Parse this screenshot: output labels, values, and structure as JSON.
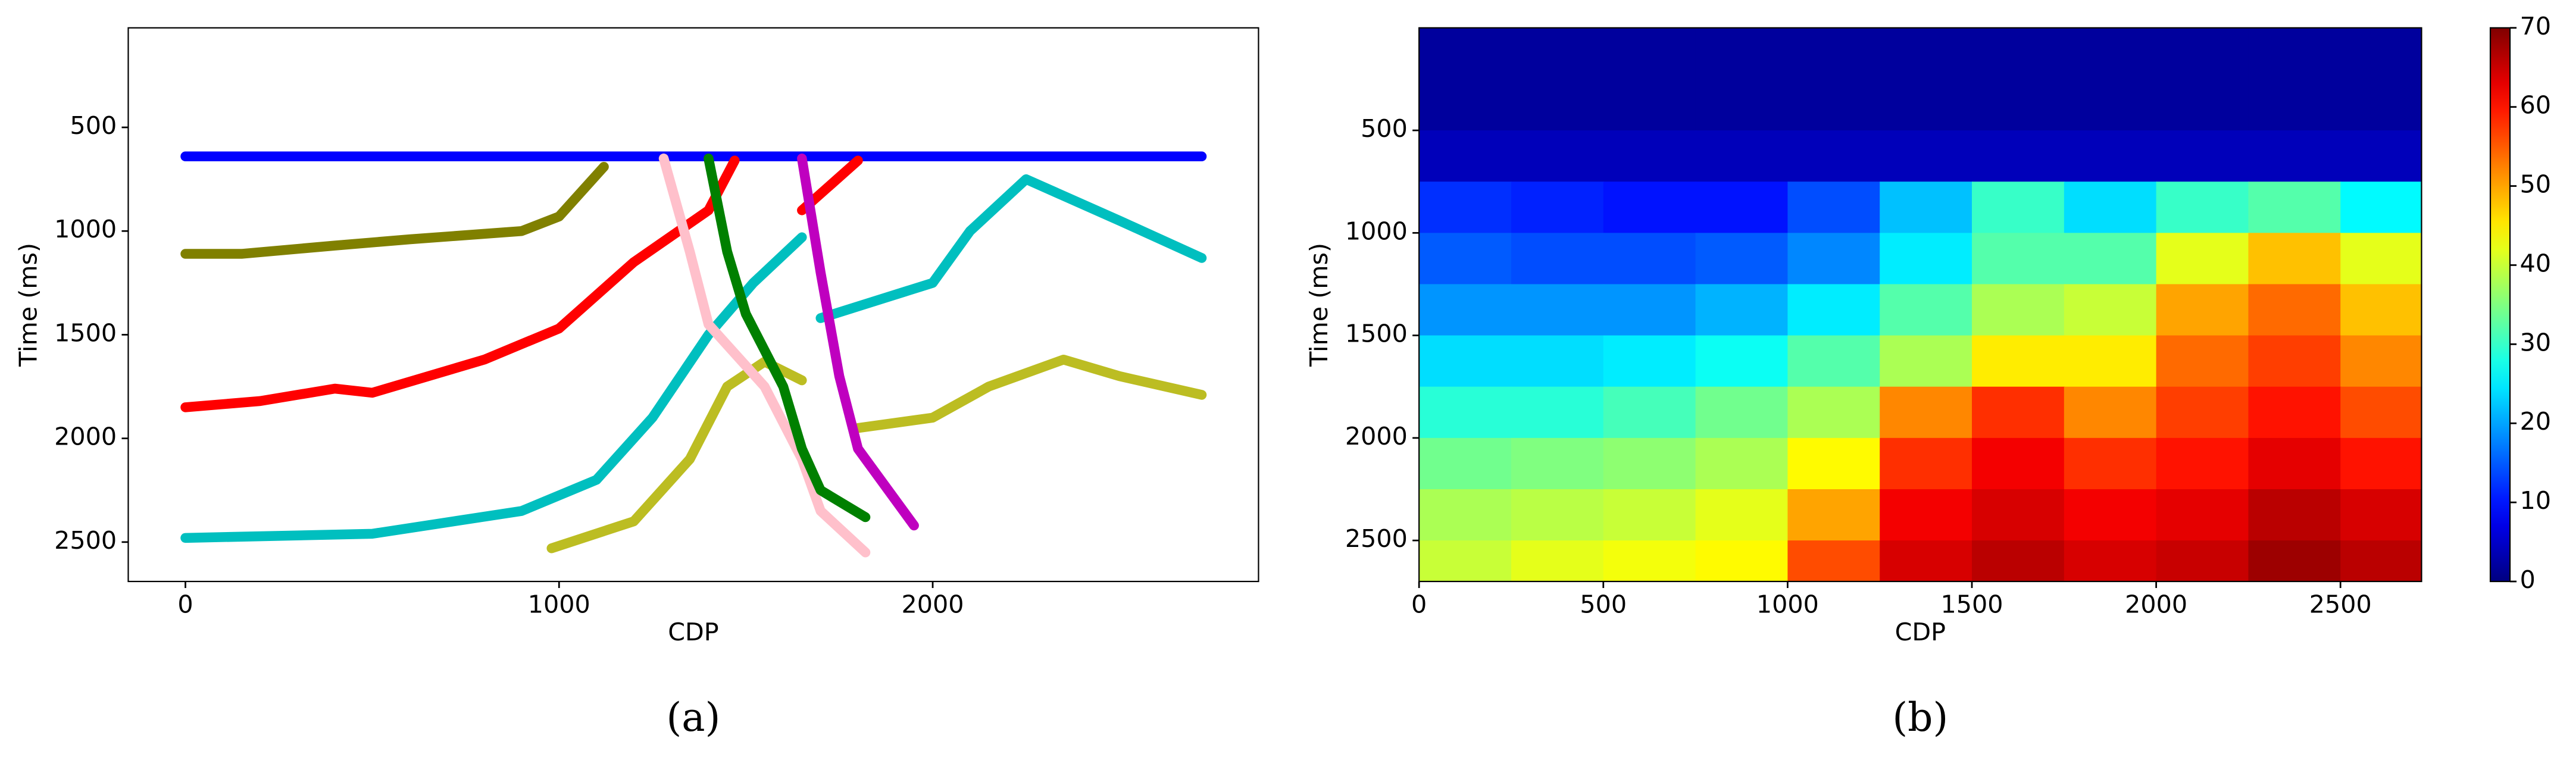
{
  "chart_data": [
    {
      "type": "line",
      "caption": "(a)",
      "xlabel": "CDP",
      "ylabel": "Time (ms)",
      "xlim": [
        -153,
        2872
      ],
      "ylim": [
        2690,
        20
      ],
      "xticks": [
        0,
        1000,
        2000
      ],
      "yticks": [
        500,
        1000,
        1500,
        2000,
        2500
      ],
      "series": [
        {
          "color": "#0000ff",
          "x": [
            0,
            2720
          ],
          "values": [
            640,
            640
          ]
        },
        {
          "color": "#808000",
          "x": [
            0,
            150,
            400,
            600,
            900,
            1000,
            1120
          ],
          "values": [
            1110,
            1110,
            1070,
            1040,
            1000,
            930,
            690
          ]
        },
        {
          "color": "#ff0000",
          "x": [
            0,
            200,
            400,
            500,
            800,
            1000,
            1200,
            1400,
            1470,
            null,
            1650,
            1800
          ],
          "values": [
            1850,
            1820,
            1760,
            1780,
            1620,
            1470,
            1150,
            900,
            660,
            null,
            900,
            660
          ]
        },
        {
          "color": "#00bfbf",
          "x": [
            0,
            500,
            900,
            1100,
            1250,
            1400,
            1520,
            1650,
            null,
            1700,
            2000,
            2100,
            2250,
            2500,
            2720
          ],
          "values": [
            2480,
            2460,
            2350,
            2200,
            1900,
            1500,
            1250,
            1030,
            null,
            1420,
            1250,
            1000,
            750,
            950,
            1130
          ]
        },
        {
          "color": "#bcbd22",
          "x": [
            980,
            1200,
            1350,
            1450,
            1550,
            1650,
            null,
            1800,
            2000,
            2150,
            2350,
            2500,
            2720
          ],
          "values": [
            2530,
            2400,
            2100,
            1750,
            1630,
            1720,
            null,
            1950,
            1900,
            1750,
            1620,
            1700,
            1790
          ]
        },
        {
          "color": "#ffc0cb",
          "x": [
            1280,
            1350,
            1400,
            1550,
            1650,
            1700,
            1820
          ],
          "values": [
            650,
            1100,
            1450,
            1750,
            2100,
            2350,
            2550
          ]
        },
        {
          "color": "#008000",
          "x": [
            1400,
            1450,
            1500,
            1600,
            1650,
            1700,
            1820
          ],
          "values": [
            650,
            1100,
            1400,
            1750,
            2050,
            2250,
            2380
          ]
        },
        {
          "color": "#bf00bf",
          "x": [
            1650,
            1700,
            1750,
            1800,
            1950
          ],
          "values": [
            650,
            1200,
            1700,
            2050,
            2420
          ]
        }
      ]
    },
    {
      "type": "heatmap",
      "caption": "(b)",
      "xlabel": "CDP",
      "ylabel": "Time (ms)",
      "xlim": [
        0,
        2720
      ],
      "ylim": [
        2700,
        0
      ],
      "xticks": [
        0,
        500,
        1000,
        1500,
        2000,
        2500
      ],
      "yticks": [
        500,
        1000,
        1500,
        2000,
        2500
      ],
      "clim": [
        0,
        70
      ],
      "cticks": [
        0,
        10,
        20,
        30,
        40,
        50,
        60,
        70
      ],
      "x": [
        125,
        375,
        625,
        875,
        1125,
        1375,
        1625,
        1875,
        2125,
        2375,
        2625
      ],
      "y": [
        125,
        375,
        625,
        875,
        1125,
        1375,
        1625,
        1875,
        2125,
        2375,
        2625
      ],
      "z": [
        [
          2,
          2,
          2,
          2,
          2,
          2,
          2,
          2,
          2,
          2,
          2
        ],
        [
          2,
          2,
          2,
          2,
          2,
          2,
          2,
          2,
          2,
          2,
          2
        ],
        [
          4,
          4,
          4,
          4,
          4,
          4,
          4,
          4,
          4,
          4,
          4
        ],
        [
          12,
          11,
          10,
          10,
          14,
          22,
          30,
          24,
          30,
          32,
          26
        ],
        [
          15,
          14,
          14,
          15,
          18,
          25,
          32,
          32,
          42,
          48,
          42
        ],
        [
          19,
          19,
          19,
          21,
          25,
          32,
          38,
          40,
          50,
          54,
          48
        ],
        [
          24,
          24,
          25,
          27,
          32,
          38,
          45,
          45,
          54,
          57,
          52
        ],
        [
          29,
          29,
          31,
          34,
          38,
          52,
          58,
          52,
          57,
          60,
          56
        ],
        [
          34,
          35,
          36,
          38,
          44,
          58,
          62,
          58,
          60,
          63,
          60
        ],
        [
          38,
          39,
          40,
          42,
          50,
          62,
          64,
          62,
          63,
          66,
          64
        ],
        [
          40,
          42,
          43,
          44,
          56,
          64,
          66,
          64,
          65,
          68,
          66
        ]
      ]
    }
  ]
}
